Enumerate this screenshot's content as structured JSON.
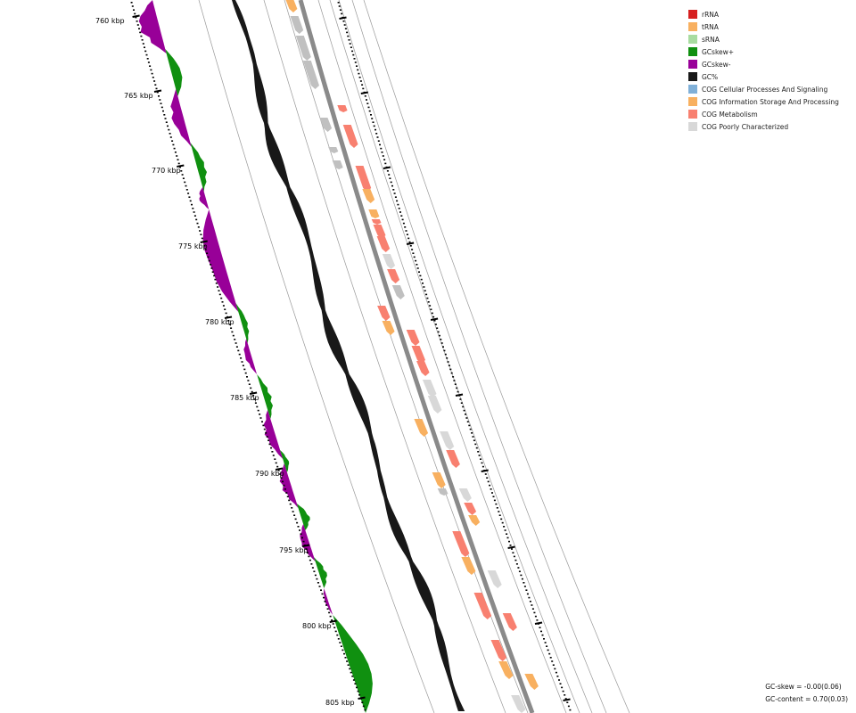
{
  "ticks": [
    {
      "label": "760 kbp"
    },
    {
      "label": "765 kbp"
    },
    {
      "label": "770 kbp"
    },
    {
      "label": "775 kbp"
    },
    {
      "label": "780 kbp"
    },
    {
      "label": "785 kbp"
    },
    {
      "label": "790 kbp"
    },
    {
      "label": "795 kbp"
    },
    {
      "label": "800 kbp"
    },
    {
      "label": "805 kbp"
    }
  ],
  "legend": [
    {
      "label": "rRNA",
      "color": "#d62020"
    },
    {
      "label": "tRNA",
      "color": "#f8b060"
    },
    {
      "label": "sRNA",
      "color": "#a8dca0"
    },
    {
      "label": "GCskew+",
      "color": "#109010"
    },
    {
      "label": "GCskew-",
      "color": "#980098"
    },
    {
      "label": "GC%",
      "color": "#181818"
    },
    {
      "label": "COG Cellular Processes And Signaling",
      "color": "#80b0d8"
    },
    {
      "label": "COG Information Storage And Processing",
      "color": "#f8b060"
    },
    {
      "label": "COG Metabolism",
      "color": "#f88070"
    },
    {
      "label": "COG Poorly Characterized",
      "color": "#d8d8d8"
    }
  ],
  "stats": {
    "gc_skew": "GC-skew = -0.00(0.06)",
    "gc_content": "GC-content = 0.70(0.03)"
  }
}
